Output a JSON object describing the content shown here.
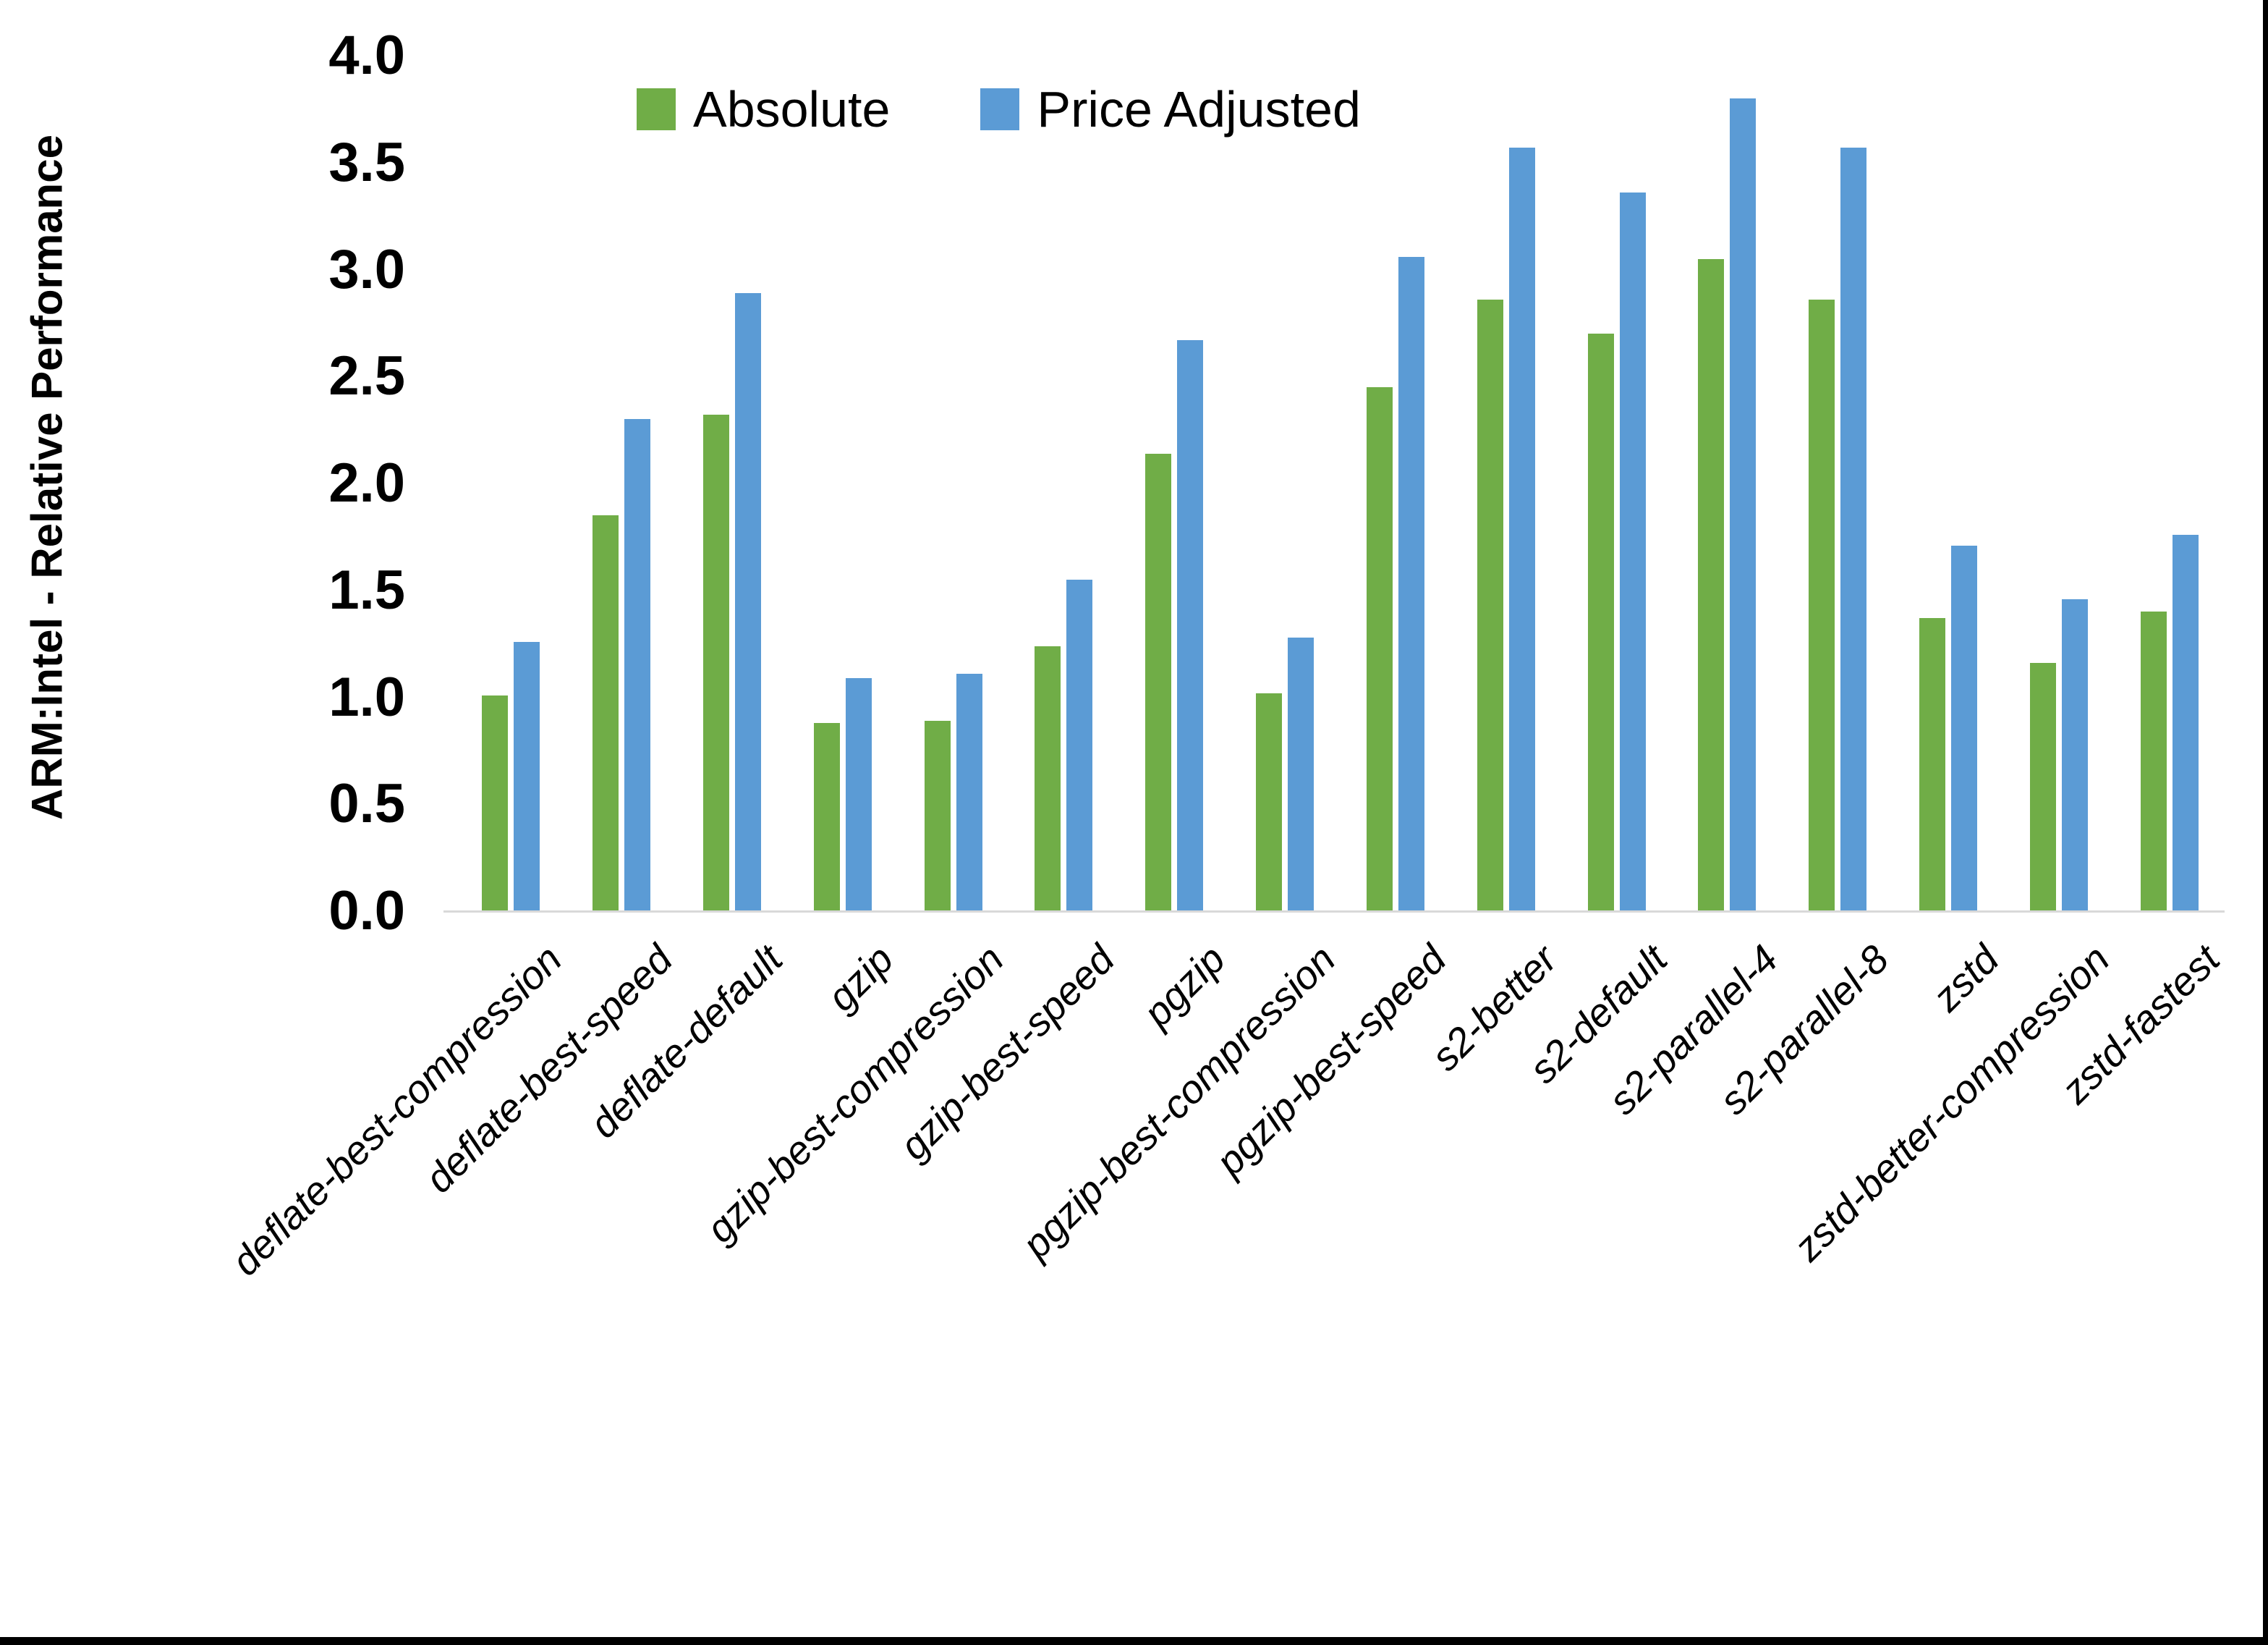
{
  "figure": {
    "y_axis_title": "ARM:Intel - Relative Performance"
  },
  "chart_data": {
    "type": "bar",
    "title": "",
    "xlabel": "",
    "ylabel": "ARM:Intel - Relative Performance",
    "ylim": [
      0.0,
      4.0
    ],
    "ytick_step": 0.5,
    "yticks": [
      "0.0",
      "0.5",
      "1.0",
      "1.5",
      "2.0",
      "2.5",
      "3.0",
      "3.5",
      "4.0"
    ],
    "grid": false,
    "legend_position": "top-center",
    "categories": [
      "deflate-best-compression",
      "deflate-best-speed",
      "deflate-default",
      "gzip",
      "gzip-best-compression",
      "gzip-best-speed",
      "pgzip",
      "pgzip-best-compression",
      "pgzip-best-speed",
      "s2-better",
      "s2-default",
      "s2-parallel-4",
      "s2-parallel-8",
      "zstd",
      "zstd-better-compression",
      "zstd-fastest"
    ],
    "series": [
      {
        "name": "Absolute",
        "color": "#70AD47",
        "values": [
          1.01,
          1.85,
          2.32,
          0.88,
          0.89,
          1.24,
          2.14,
          1.02,
          2.45,
          2.86,
          2.7,
          3.05,
          2.86,
          1.37,
          1.16,
          1.4
        ]
      },
      {
        "name": "Price Adjusted",
        "color": "#5B9BD5",
        "values": [
          1.26,
          2.3,
          2.89,
          1.09,
          1.11,
          1.55,
          2.67,
          1.28,
          3.06,
          3.57,
          3.36,
          3.8,
          3.57,
          1.71,
          1.46,
          1.76
        ]
      }
    ],
    "colors": {
      "absolute": "#70AD47",
      "price_adjusted": "#5B9BD5",
      "axis_line": "#D9D9D9",
      "text": "#000000"
    }
  }
}
